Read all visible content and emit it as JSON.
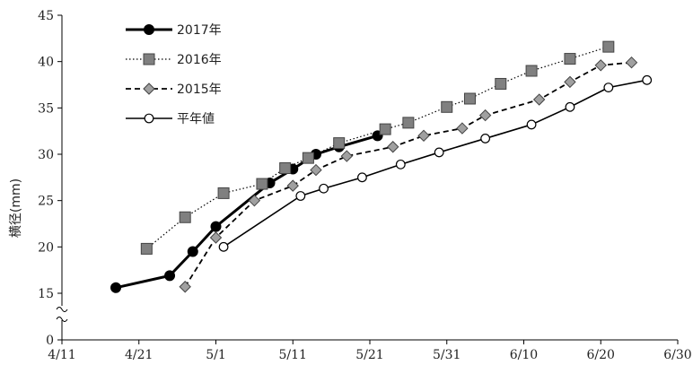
{
  "chart_data": {
    "type": "line",
    "ylabel": "横径(mm)",
    "xlabel": "",
    "title": "",
    "x_ticks": [
      "4/11",
      "4/21",
      "5/1",
      "5/11",
      "5/21",
      "5/31",
      "6/10",
      "6/20",
      "6/30"
    ],
    "y_ticks": [
      "0",
      "15",
      "20",
      "25",
      "30",
      "35",
      "40",
      "45"
    ],
    "xlim": [
      "4/11",
      "6/30"
    ],
    "ylim": [
      0,
      45
    ],
    "y_axis_break": true,
    "grid": false,
    "legend_position": "top-left",
    "series": [
      {
        "name": "2017年",
        "style": "solid-bold",
        "marker": "filled-circle",
        "color": "#000000",
        "points": [
          {
            "x": "4/18",
            "y": 15.6
          },
          {
            "x": "4/25",
            "y": 16.9
          },
          {
            "x": "4/28",
            "y": 19.5
          },
          {
            "x": "5/1",
            "y": 22.2
          },
          {
            "x": "5/8",
            "y": 26.9
          },
          {
            "x": "5/11",
            "y": 28.4
          },
          {
            "x": "5/14",
            "y": 30.0
          },
          {
            "x": "5/17",
            "y": 30.8
          },
          {
            "x": "5/22",
            "y": 32.0
          }
        ]
      },
      {
        "name": "2016年",
        "style": "dotted",
        "marker": "gray-square",
        "color": "#808080",
        "points": [
          {
            "x": "4/22",
            "y": 19.8
          },
          {
            "x": "4/27",
            "y": 23.2
          },
          {
            "x": "5/2",
            "y": 25.8
          },
          {
            "x": "5/7",
            "y": 26.8
          },
          {
            "x": "5/10",
            "y": 28.5
          },
          {
            "x": "5/13",
            "y": 29.6
          },
          {
            "x": "5/17",
            "y": 31.2
          },
          {
            "x": "5/23",
            "y": 32.7
          },
          {
            "x": "5/26",
            "y": 33.4
          },
          {
            "x": "5/31",
            "y": 35.1
          },
          {
            "x": "6/3",
            "y": 36.0
          },
          {
            "x": "6/7",
            "y": 37.6
          },
          {
            "x": "6/11",
            "y": 39.0
          },
          {
            "x": "6/16",
            "y": 40.3
          },
          {
            "x": "6/21",
            "y": 41.6
          }
        ]
      },
      {
        "name": "2015年",
        "style": "dashed",
        "marker": "gray-diamond",
        "color": "#a0a0a0",
        "points": [
          {
            "x": "4/27",
            "y": 15.7
          },
          {
            "x": "5/1",
            "y": 21.0
          },
          {
            "x": "5/6",
            "y": 25.0
          },
          {
            "x": "5/11",
            "y": 26.6
          },
          {
            "x": "5/14",
            "y": 28.3
          },
          {
            "x": "5/18",
            "y": 29.8
          },
          {
            "x": "5/24",
            "y": 30.8
          },
          {
            "x": "5/28",
            "y": 32.0
          },
          {
            "x": "6/2",
            "y": 32.8
          },
          {
            "x": "6/5",
            "y": 34.2
          },
          {
            "x": "6/12",
            "y": 35.9
          },
          {
            "x": "6/16",
            "y": 37.8
          },
          {
            "x": "6/20",
            "y": 39.6
          },
          {
            "x": "6/24",
            "y": 39.9
          }
        ]
      },
      {
        "name": "平年値",
        "style": "solid",
        "marker": "open-circle",
        "color": "#000000",
        "points": [
          {
            "x": "5/2",
            "y": 20.0
          },
          {
            "x": "5/12",
            "y": 25.5
          },
          {
            "x": "5/15",
            "y": 26.3
          },
          {
            "x": "5/20",
            "y": 27.5
          },
          {
            "x": "5/25",
            "y": 28.9
          },
          {
            "x": "5/30",
            "y": 30.2
          },
          {
            "x": "6/5",
            "y": 31.7
          },
          {
            "x": "6/11",
            "y": 33.2
          },
          {
            "x": "6/16",
            "y": 35.1
          },
          {
            "x": "6/21",
            "y": 37.2
          },
          {
            "x": "6/26",
            "y": 38.0
          }
        ]
      }
    ]
  }
}
